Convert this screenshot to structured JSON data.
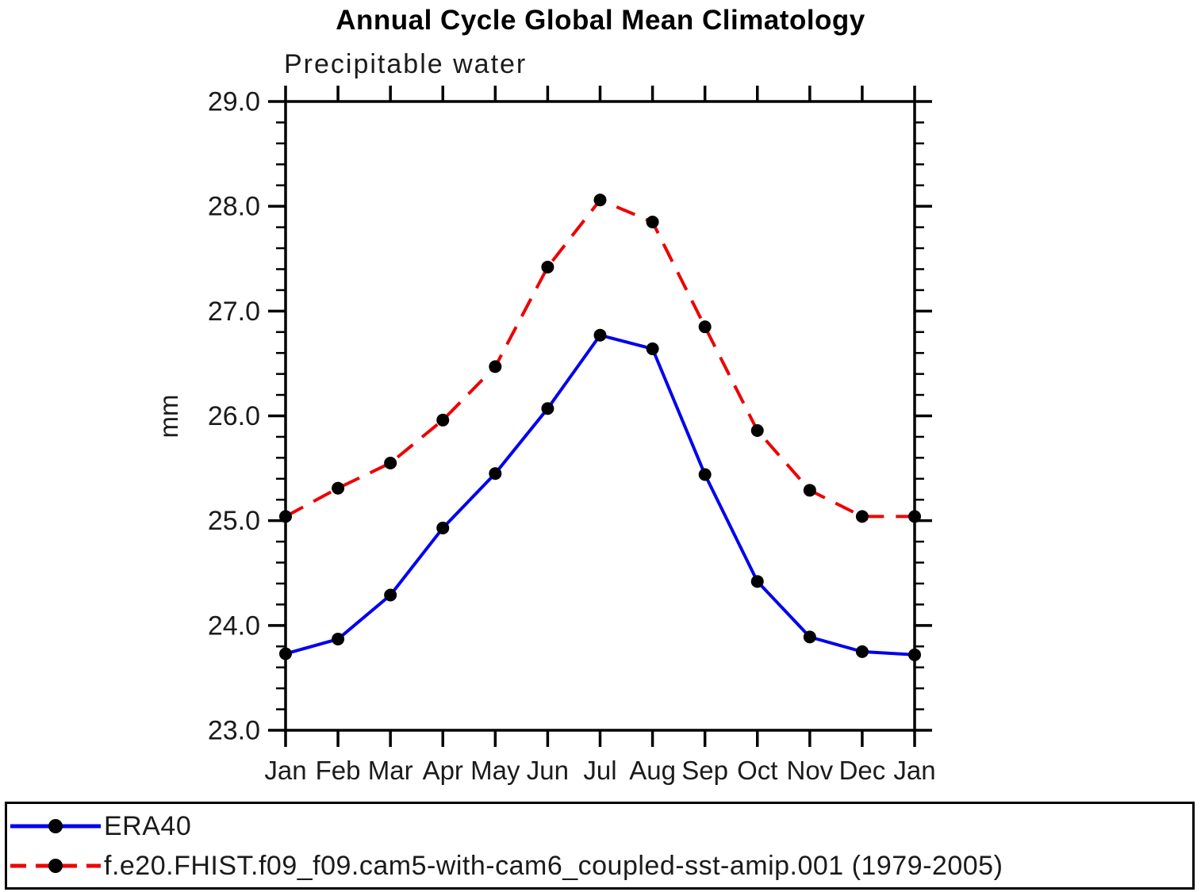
{
  "header": {
    "title": "Annual Cycle Global Mean Climatology",
    "subtitle": "Precipitable water"
  },
  "chart_data": {
    "type": "line",
    "title": "Annual Cycle Global Mean Climatology",
    "subtitle": "Precipitable water",
    "xlabel": "",
    "ylabel": "mm",
    "ylim": [
      23.0,
      29.0
    ],
    "ytick_step": 1.0,
    "ytick_minor_step": 0.2,
    "ytick_labels": [
      "23.0",
      "24.0",
      "25.0",
      "26.0",
      "27.0",
      "28.0",
      "29.0"
    ],
    "grid": false,
    "legend_position": "bottom",
    "categories": [
      "Jan",
      "Feb",
      "Mar",
      "Apr",
      "May",
      "Jun",
      "Jul",
      "Aug",
      "Sep",
      "Oct",
      "Nov",
      "Dec",
      "Jan"
    ],
    "series": [
      {
        "name": "ERA40",
        "color": "#0000ee",
        "line_style": "solid",
        "marker": "circle",
        "marker_color": "#000000",
        "values": [
          23.73,
          23.87,
          24.29,
          24.93,
          25.45,
          26.07,
          26.77,
          26.64,
          25.44,
          24.42,
          23.89,
          23.75,
          23.72
        ]
      },
      {
        "name": "f.e20.FHIST.f09_f09.cam5-with-cam6_coupled-sst-amip.001 (1979-2005)",
        "color": "#ee0000",
        "line_style": "dashed",
        "marker": "circle",
        "marker_color": "#000000",
        "values": [
          25.04,
          25.31,
          25.55,
          25.96,
          26.47,
          27.42,
          28.06,
          27.85,
          26.85,
          25.86,
          25.29,
          25.04,
          25.04
        ]
      }
    ]
  },
  "legend": {
    "items": [
      {
        "label": "ERA40"
      },
      {
        "label": "f.e20.FHIST.f09_f09.cam5-with-cam6_coupled-sst-amip.001 (1979-2005)"
      }
    ]
  }
}
